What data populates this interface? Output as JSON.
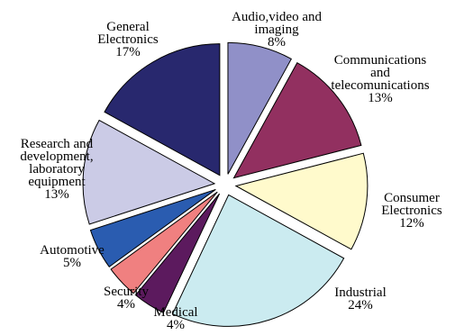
{
  "chart_data": {
    "type": "pie",
    "title": "",
    "slices": [
      {
        "label_lines": [
          "Audio,video and",
          "imaging",
          "8%"
        ],
        "value": 8,
        "color": "#9090C8"
      },
      {
        "label_lines": [
          "Communications",
          "and",
          "telecomunications",
          "13%"
        ],
        "value": 13,
        "color": "#923060"
      },
      {
        "label_lines": [
          "Consumer",
          "Electronics",
          "12%"
        ],
        "value": 12,
        "color": "#FFFACC"
      },
      {
        "label_lines": [
          "Industrial",
          "24%"
        ],
        "value": 24,
        "color": "#CBEBF0"
      },
      {
        "label_lines": [
          "Medical",
          "4%"
        ],
        "value": 4,
        "color": "#5C1A5E"
      },
      {
        "label_lines": [
          "Security",
          "4%"
        ],
        "value": 4,
        "color": "#F08080"
      },
      {
        "label_lines": [
          "Automotive",
          "5%"
        ],
        "value": 5,
        "color": "#2A5CB0"
      },
      {
        "label_lines": [
          "Research and",
          "development,",
          "laboratory",
          "equipment",
          "13%"
        ],
        "value": 13,
        "color": "#CBCBE6"
      },
      {
        "label_lines": [
          "General",
          "Electronics",
          "17%"
        ],
        "value": 17,
        "color": "#28286E"
      }
    ],
    "exploded": true,
    "start_angle_deg": 0,
    "direction": "clockwise",
    "slice_border_color": "#000000"
  }
}
